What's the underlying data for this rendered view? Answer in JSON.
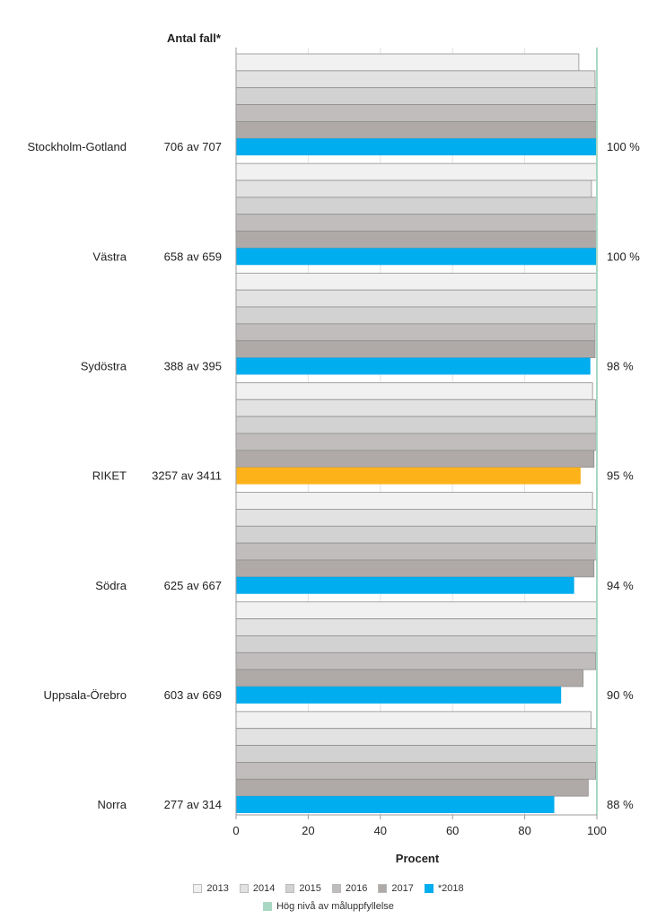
{
  "chart_data": {
    "type": "bar",
    "orientation": "horizontal",
    "count_header": "Antal fall*",
    "xlabel": "Procent",
    "xlim": [
      0,
      100
    ],
    "xticks": [
      0,
      20,
      40,
      60,
      80,
      100
    ],
    "target_line_value": 100,
    "series": [
      {
        "name": "2013",
        "color": "#f1f1f1"
      },
      {
        "name": "2014",
        "color": "#e2e2e2"
      },
      {
        "name": "2015",
        "color": "#d2d2d2"
      },
      {
        "name": "2016",
        "color": "#c1bdbd"
      },
      {
        "name": "2017",
        "color": "#afaaa8"
      },
      {
        "name": "*2018",
        "color": "#00adef"
      }
    ],
    "categories": [
      {
        "name": "Stockholm-Gotland",
        "count": "706 av 707",
        "value_label": "100 %",
        "values": [
          95,
          99.5,
          99.8,
          99.8,
          99.8,
          99.9
        ],
        "highlight": false
      },
      {
        "name": "Västra",
        "count": "658 av 659",
        "value_label": "100 %",
        "values": [
          100,
          98.5,
          100,
          100,
          100,
          99.9
        ],
        "highlight": false
      },
      {
        "name": "Sydöstra",
        "count": "388 av 395",
        "value_label": "98 %",
        "values": [
          100,
          100,
          100,
          99.5,
          99.5,
          98.2
        ],
        "highlight": false
      },
      {
        "name": "RIKET",
        "count": "3257 av 3411",
        "value_label": "95 %",
        "values": [
          98.8,
          99.6,
          99.8,
          99.8,
          99.2,
          95.5
        ],
        "highlight": true
      },
      {
        "name": "Södra",
        "count": "625 av 667",
        "value_label": "94 %",
        "values": [
          98.8,
          100,
          99.6,
          100,
          99.2,
          93.7
        ],
        "highlight": false
      },
      {
        "name": "Uppsala-Örebro",
        "count": "603 av 669",
        "value_label": "90 %",
        "values": [
          100,
          100,
          100,
          99.7,
          96.2,
          90.1
        ],
        "highlight": false
      },
      {
        "name": "Norra",
        "count": "277 av 314",
        "value_label": "88 %",
        "values": [
          98.4,
          100,
          100,
          99.7,
          97.6,
          88.2
        ],
        "highlight": false
      }
    ],
    "highlight_color": "#fdb21a",
    "target_legend": "Hög nivå av måluppfyllelse",
    "target_color": "#a8d8c3"
  }
}
